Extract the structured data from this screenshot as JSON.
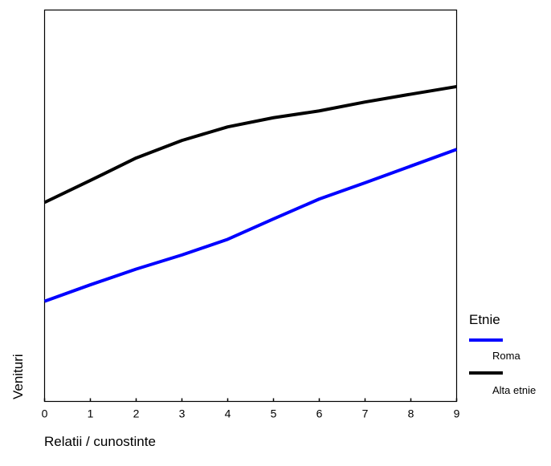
{
  "chart_data": {
    "type": "line",
    "xlabel": "Relatii / cunostinte",
    "ylabel": "Venituri",
    "x": [
      0,
      1,
      2,
      3,
      4,
      5,
      6,
      7,
      8,
      9
    ],
    "xlim": [
      0,
      9
    ],
    "ylim": [
      0,
      100
    ],
    "grid": false,
    "y_tick_labels_shown": false,
    "legend": {
      "title": "Etnie",
      "placement": "right"
    },
    "series": [
      {
        "name": "Roma",
        "color": "#0000ff",
        "values": [
          17.3,
          23.6,
          29.6,
          35.0,
          41.0,
          48.8,
          56.4,
          62.6,
          69.0,
          75.4
        ]
      },
      {
        "name": "Alta etnie",
        "color": "#000000",
        "values": [
          55.1,
          63.5,
          72.1,
          78.8,
          84.0,
          87.5,
          90.1,
          93.5,
          96.5,
          99.4
        ]
      }
    ]
  }
}
